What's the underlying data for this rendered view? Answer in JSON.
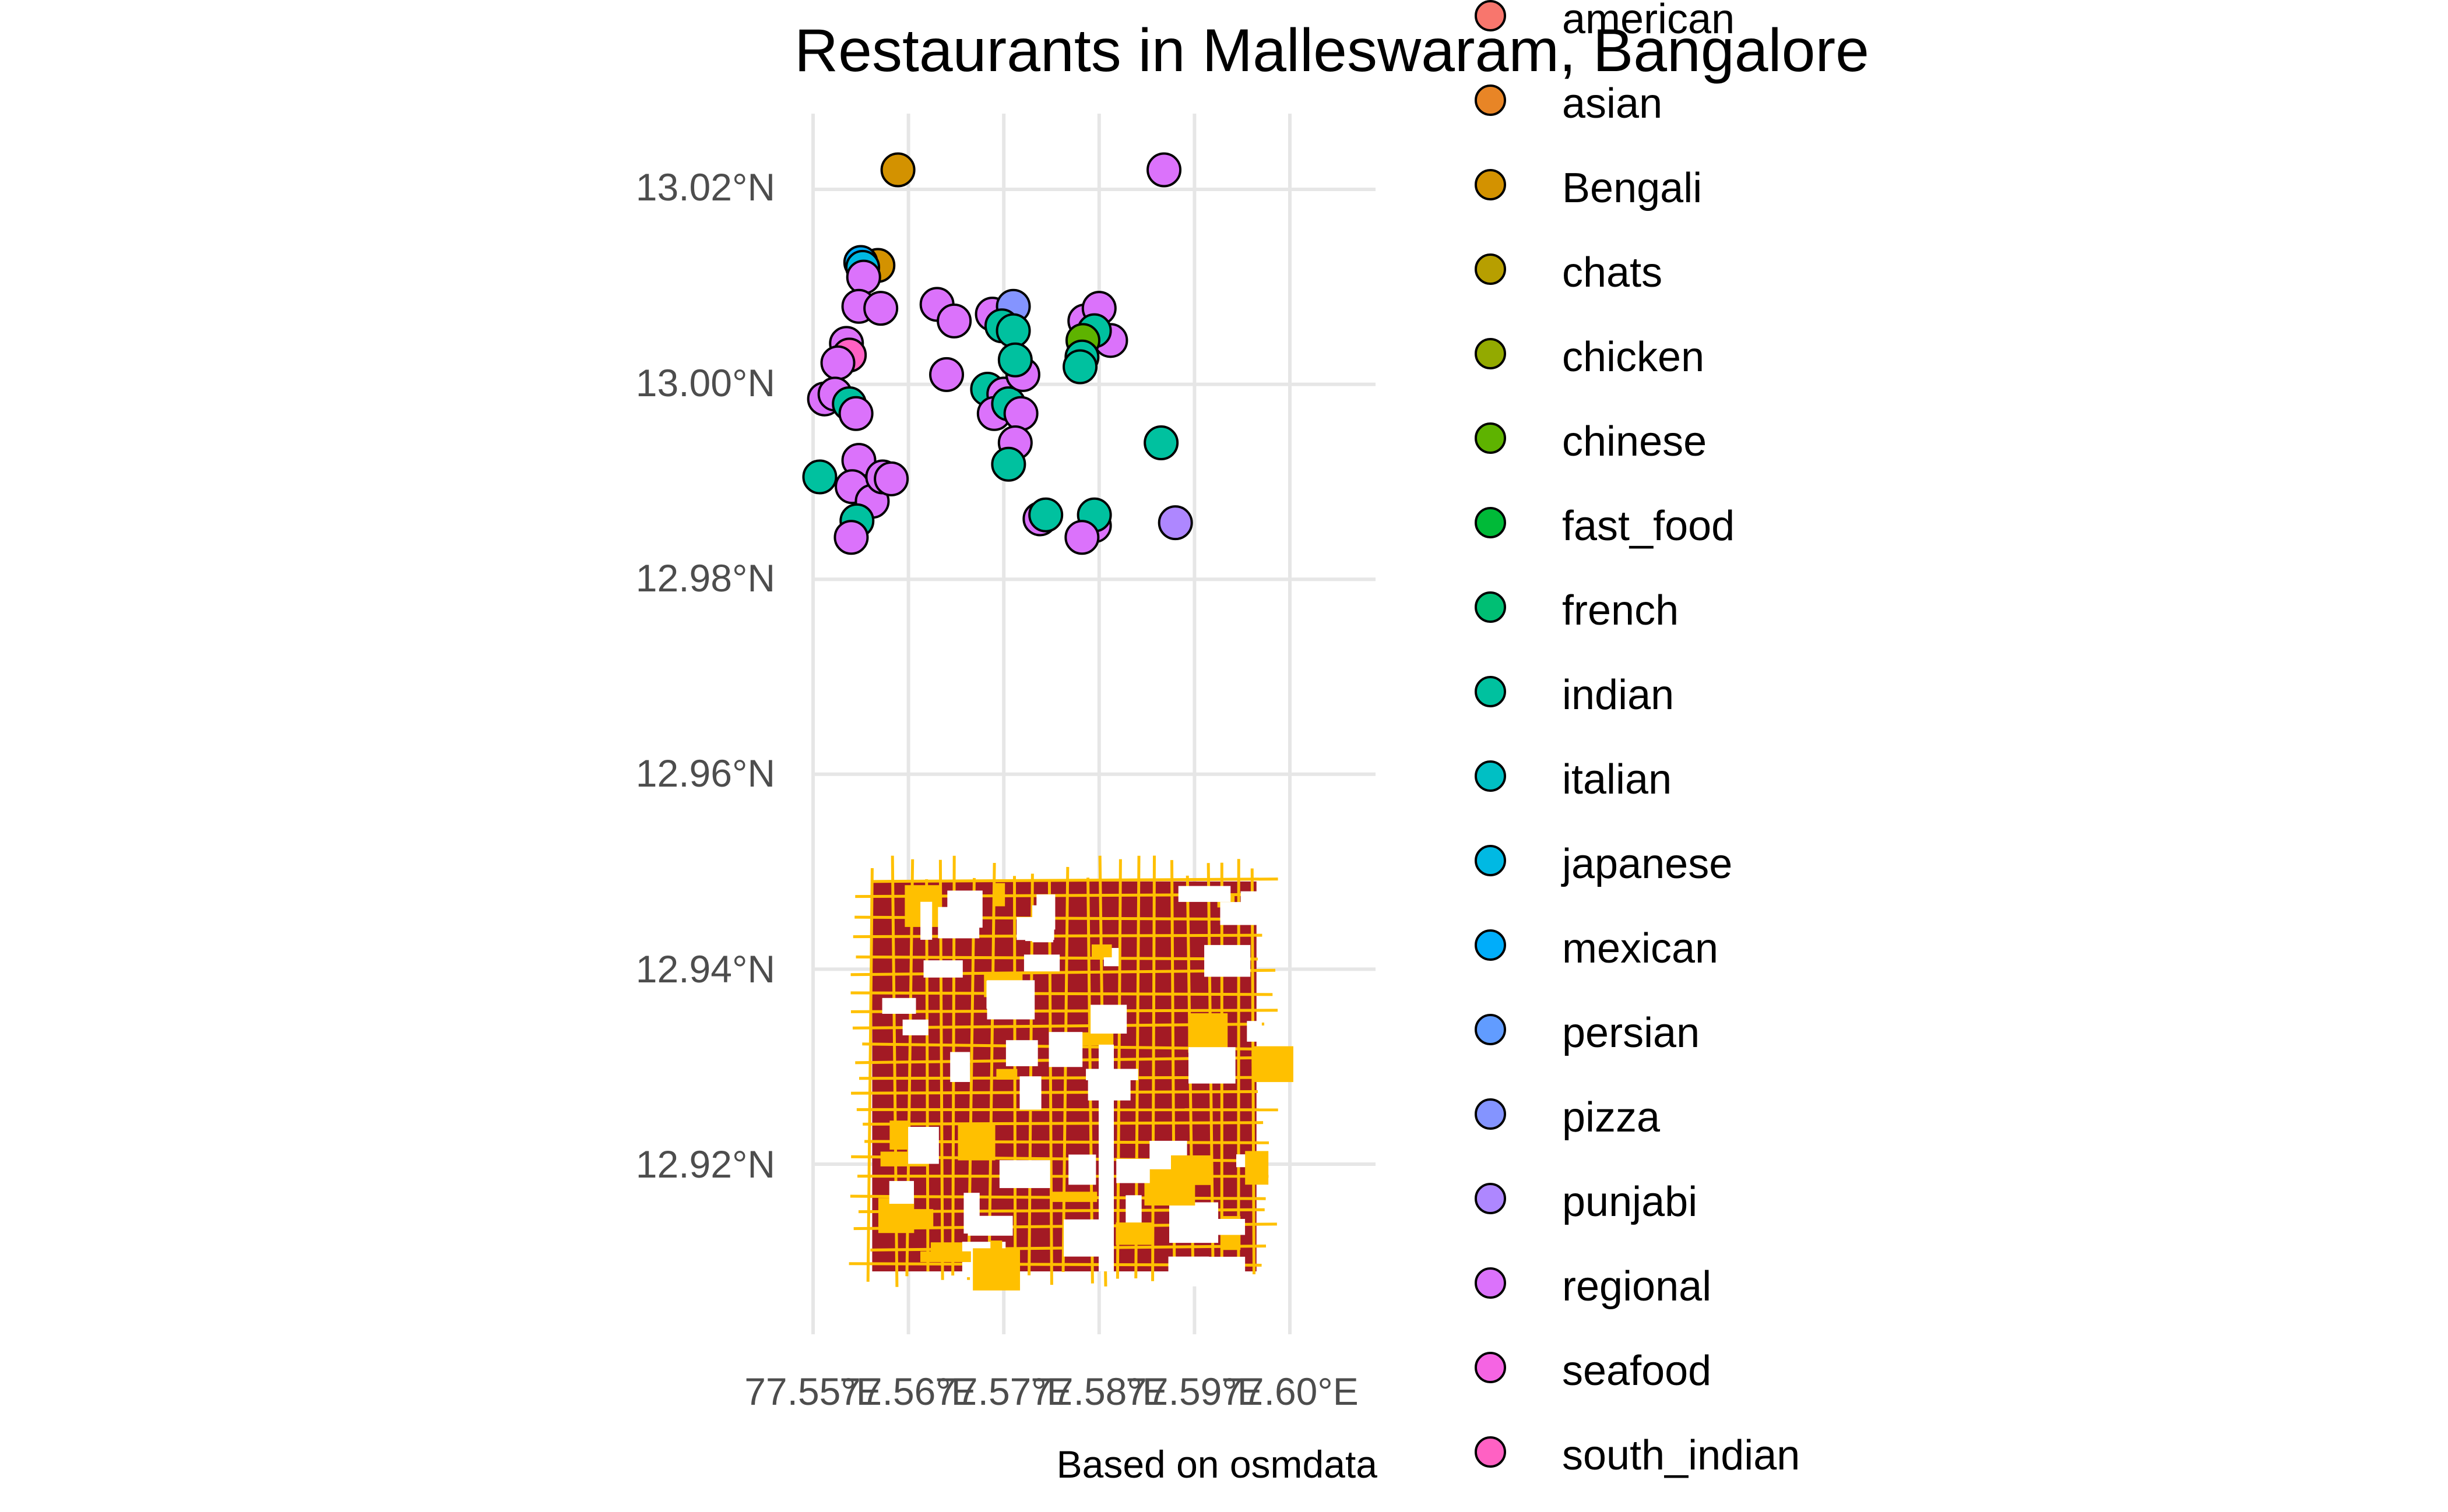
{
  "title": "Restaurants in Malleswaram, Bangalore",
  "caption": "Based on osmdata",
  "colors": {
    "road": "#ffc000",
    "building": "#a31a24",
    "grid": "#e6e6e6",
    "point_outline": "#000000"
  },
  "chart_data": {
    "type": "scatter",
    "x_axis": {
      "ticks": [
        "77.55°E",
        "77.56°E",
        "77.57°E",
        "77.58°E",
        "77.59°E",
        "77.60°E"
      ],
      "tick_values": [
        77.55,
        77.56,
        77.57,
        77.58,
        77.59,
        77.6
      ]
    },
    "y_axis": {
      "ticks": [
        "13.02°N",
        "13.00°N",
        "12.98°N",
        "12.96°N",
        "12.94°N",
        "12.92°N"
      ],
      "tick_values": [
        13.02,
        13.0,
        12.98,
        12.96,
        12.94,
        12.92
      ]
    },
    "xlim": [
      77.548,
      77.609
    ],
    "ylim": [
      12.903,
      13.028
    ],
    "grid": true,
    "legend_position": "right",
    "street_layer": {
      "xlim": [
        77.5562,
        77.5965
      ],
      "ylim": [
        12.909,
        12.949
      ]
    },
    "legend": [
      {
        "label": "american",
        "color": "#F8766D"
      },
      {
        "label": "asian",
        "color": "#E88526"
      },
      {
        "label": "Bengali",
        "color": "#D39200"
      },
      {
        "label": "chats",
        "color": "#B79F00"
      },
      {
        "label": "chicken",
        "color": "#93AA00"
      },
      {
        "label": "chinese",
        "color": "#5EB300"
      },
      {
        "label": "fast_food",
        "color": "#00BA38"
      },
      {
        "label": "french",
        "color": "#00BF74"
      },
      {
        "label": "indian",
        "color": "#00C19F"
      },
      {
        "label": "italian",
        "color": "#00BFC4"
      },
      {
        "label": "japanese",
        "color": "#00B9E3"
      },
      {
        "label": "mexican",
        "color": "#00ADFA"
      },
      {
        "label": "persian",
        "color": "#619CFF"
      },
      {
        "label": "pizza",
        "color": "#8494FF"
      },
      {
        "label": "punjabi",
        "color": "#AE87FF"
      },
      {
        "label": "regional",
        "color": "#DB72FB"
      },
      {
        "label": "seafood",
        "color": "#F564E3"
      },
      {
        "label": "south_indian",
        "color": "#FF61C3"
      },
      {
        "label": "",
        "color": "#FF6C91"
      }
    ],
    "points": [
      {
        "lon": 77.5589,
        "lat": 13.022,
        "cuisine": "Bengali"
      },
      {
        "lon": 77.5868,
        "lat": 13.022,
        "cuisine": "regional"
      },
      {
        "lon": 77.5568,
        "lat": 13.0122,
        "cuisine": "Bengali"
      },
      {
        "lon": 77.555,
        "lat": 13.0125,
        "cuisine": "mexican"
      },
      {
        "lon": 77.5552,
        "lat": 13.012,
        "cuisine": "japanese"
      },
      {
        "lon": 77.5553,
        "lat": 13.011,
        "cuisine": "regional"
      },
      {
        "lon": 77.5548,
        "lat": 13.008,
        "cuisine": "regional"
      },
      {
        "lon": 77.5571,
        "lat": 13.0078,
        "cuisine": "regional"
      },
      {
        "lon": 77.5535,
        "lat": 13.0042,
        "cuisine": "regional"
      },
      {
        "lon": 77.5538,
        "lat": 13.003,
        "cuisine": "south_indian"
      },
      {
        "lon": 77.5526,
        "lat": 13.0022,
        "cuisine": "regional"
      },
      {
        "lon": 77.5512,
        "lat": 12.9985,
        "cuisine": "regional"
      },
      {
        "lon": 77.5523,
        "lat": 12.999,
        "cuisine": "regional"
      },
      {
        "lon": 77.5538,
        "lat": 12.998,
        "cuisine": "indian"
      },
      {
        "lon": 77.5545,
        "lat": 12.997,
        "cuisine": "regional"
      },
      {
        "lon": 77.5548,
        "lat": 12.9922,
        "cuisine": "regional"
      },
      {
        "lon": 77.5507,
        "lat": 12.9905,
        "cuisine": "indian"
      },
      {
        "lon": 77.5541,
        "lat": 12.9895,
        "cuisine": "regional"
      },
      {
        "lon": 77.5562,
        "lat": 12.988,
        "cuisine": "regional"
      },
      {
        "lon": 77.5573,
        "lat": 12.9905,
        "cuisine": "regional"
      },
      {
        "lon": 77.5582,
        "lat": 12.9903,
        "cuisine": "regional"
      },
      {
        "lon": 77.5546,
        "lat": 12.986,
        "cuisine": "indian"
      },
      {
        "lon": 77.554,
        "lat": 12.9843,
        "cuisine": "regional"
      },
      {
        "lon": 77.563,
        "lat": 13.0082,
        "cuisine": "regional"
      },
      {
        "lon": 77.5648,
        "lat": 13.0065,
        "cuisine": "regional"
      },
      {
        "lon": 77.5688,
        "lat": 13.0072,
        "cuisine": "regional"
      },
      {
        "lon": 77.571,
        "lat": 13.008,
        "cuisine": "pizza"
      },
      {
        "lon": 77.5698,
        "lat": 13.006,
        "cuisine": "indian"
      },
      {
        "lon": 77.571,
        "lat": 13.0055,
        "cuisine": "indian"
      },
      {
        "lon": 77.564,
        "lat": 13.001,
        "cuisine": "regional"
      },
      {
        "lon": 77.5683,
        "lat": 12.9995,
        "cuisine": "indian"
      },
      {
        "lon": 77.57,
        "lat": 12.999,
        "cuisine": "regional"
      },
      {
        "lon": 77.569,
        "lat": 12.997,
        "cuisine": "regional"
      },
      {
        "lon": 77.5705,
        "lat": 12.998,
        "cuisine": "indian"
      },
      {
        "lon": 77.572,
        "lat": 13.001,
        "cuisine": "regional"
      },
      {
        "lon": 77.5712,
        "lat": 13.0025,
        "cuisine": "indian"
      },
      {
        "lon": 77.5718,
        "lat": 12.997,
        "cuisine": "regional"
      },
      {
        "lon": 77.5712,
        "lat": 12.994,
        "cuisine": "regional"
      },
      {
        "lon": 77.5705,
        "lat": 12.9918,
        "cuisine": "indian"
      },
      {
        "lon": 77.5738,
        "lat": 12.9862,
        "cuisine": "regional"
      },
      {
        "lon": 77.5744,
        "lat": 12.9866,
        "cuisine": "indian"
      },
      {
        "lon": 77.5785,
        "lat": 13.0065,
        "cuisine": "regional"
      },
      {
        "lon": 77.58,
        "lat": 13.0078,
        "cuisine": "regional"
      },
      {
        "lon": 77.5812,
        "lat": 13.0045,
        "cuisine": "regional"
      },
      {
        "lon": 77.5795,
        "lat": 13.0055,
        "cuisine": "indian"
      },
      {
        "lon": 77.5783,
        "lat": 13.0045,
        "cuisine": "chinese"
      },
      {
        "lon": 77.5782,
        "lat": 13.0028,
        "cuisine": "indian"
      },
      {
        "lon": 77.578,
        "lat": 13.0018,
        "cuisine": "indian"
      },
      {
        "lon": 77.5865,
        "lat": 12.994,
        "cuisine": "indian"
      },
      {
        "lon": 77.5795,
        "lat": 12.9855,
        "cuisine": "regional"
      },
      {
        "lon": 77.5795,
        "lat": 12.9866,
        "cuisine": "indian"
      },
      {
        "lon": 77.5782,
        "lat": 12.9843,
        "cuisine": "regional"
      },
      {
        "lon": 77.588,
        "lat": 12.9858,
        "cuisine": "punjabi"
      }
    ]
  }
}
